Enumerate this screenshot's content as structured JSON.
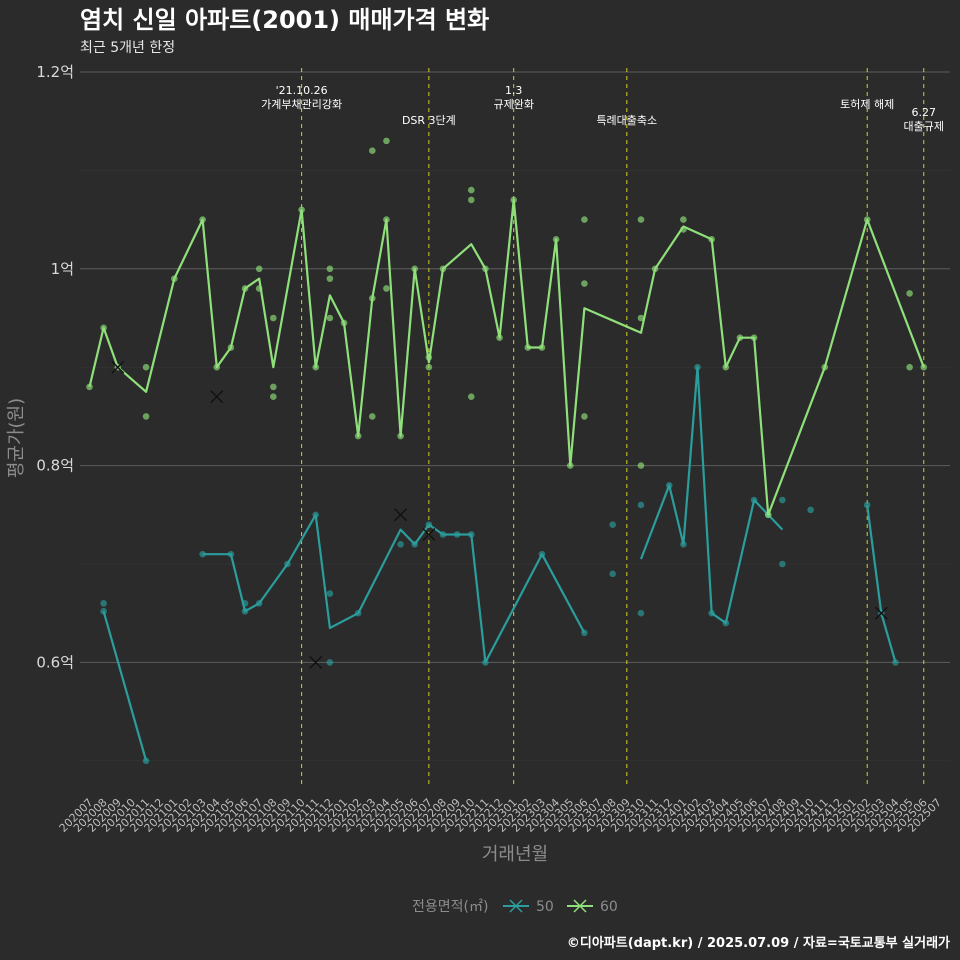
{
  "chart_data": {
    "type": "line",
    "title": "염치 신일 아파트(2001) 매매가격 변화",
    "subtitle": "최근 5개년 한정",
    "xlabel": "거래년월",
    "ylabel": "평균가(원)",
    "caption": "©디아파트(dapt.kr) / 2025.07.09 / 자료=국토교통부 실거래가",
    "ylim": [
      0.47,
      1.2
    ],
    "yticks": [
      {
        "value": 0.6,
        "label": "0.6억"
      },
      {
        "value": 0.8,
        "label": "0.8억"
      },
      {
        "value": 1.0,
        "label": "1억"
      },
      {
        "value": 1.2,
        "label": "1.2억"
      }
    ],
    "categories": [
      "202007",
      "202008",
      "202009",
      "202010",
      "202011",
      "202012",
      "202101",
      "202102",
      "202103",
      "202104",
      "202105",
      "202106",
      "202107",
      "202108",
      "202109",
      "202110",
      "202111",
      "202112",
      "202201",
      "202202",
      "202203",
      "202204",
      "202205",
      "202206",
      "202207",
      "202208",
      "202209",
      "202210",
      "202211",
      "202212",
      "202301",
      "202302",
      "202303",
      "202304",
      "202305",
      "202306",
      "202307",
      "202308",
      "202309",
      "202310",
      "202311",
      "202312",
      "202401",
      "202402",
      "202403",
      "202404",
      "202405",
      "202406",
      "202407",
      "202408",
      "202409",
      "202410",
      "202411",
      "202412",
      "202501",
      "202502",
      "202503",
      "202504",
      "202505",
      "202506",
      "202507"
    ],
    "legend": {
      "title": "전용면적(㎡)",
      "position": "bottom"
    },
    "grid": true,
    "events": [
      {
        "x": "202110",
        "lines": [
          "'21.10.26",
          "가계부채관리강화"
        ],
        "level": 0
      },
      {
        "x": "202207",
        "lines": [
          "DSR 3단계"
        ],
        "level": 2
      },
      {
        "x": "202301",
        "lines": [
          "1.3",
          "규제완화"
        ],
        "level": 0
      },
      {
        "x": "202309",
        "lines": [
          "특례대출축소"
        ],
        "level": 2
      },
      {
        "x": "202502",
        "lines": [
          "토허제 해제"
        ],
        "level": 1
      },
      {
        "x": "202506",
        "lines": [
          "6.27",
          "대출규제"
        ],
        "level": 3
      }
    ],
    "series": [
      {
        "name": "50",
        "color": "#2a9d9c",
        "line": [
          [
            "202008",
            0.652
          ],
          [
            "202011",
            0.5
          ],
          null,
          [
            "202103",
            0.71
          ],
          [
            "202105",
            0.71
          ],
          [
            "202106",
            0.652
          ],
          [
            "202107",
            0.66
          ],
          [
            "202109",
            0.7
          ],
          [
            "202111",
            0.75
          ],
          [
            "202112",
            0.635
          ],
          [
            "202202",
            0.65
          ],
          [
            "202205",
            0.735
          ],
          [
            "202206",
            0.72
          ],
          [
            "202207",
            0.74
          ],
          [
            "202208",
            0.73
          ],
          [
            "202209",
            0.73
          ],
          [
            "202210",
            0.73
          ],
          [
            "202211",
            0.6
          ],
          [
            "202303",
            0.71
          ],
          [
            "202306",
            0.63
          ],
          null,
          [
            "202310",
            0.705
          ],
          [
            "202312",
            0.78
          ],
          [
            "202401",
            0.72
          ],
          [
            "202402",
            0.9
          ],
          [
            "202403",
            0.65
          ],
          [
            "202404",
            0.64
          ],
          [
            "202406",
            0.765
          ],
          [
            "202407",
            0.75
          ],
          [
            "202408",
            0.735
          ],
          null,
          [
            "202502",
            0.76
          ],
          [
            "202503",
            0.65
          ],
          [
            "202504",
            0.6
          ]
        ],
        "points": [
          [
            "202008",
            0.66
          ],
          [
            "202008",
            0.652
          ],
          [
            "202011",
            0.5
          ],
          [
            "202103",
            0.71
          ],
          [
            "202105",
            0.71
          ],
          [
            "202106",
            0.66
          ],
          [
            "202106",
            0.652
          ],
          [
            "202107",
            0.66
          ],
          [
            "202109",
            0.7
          ],
          [
            "202111",
            0.75
          ],
          [
            "202112",
            0.67
          ],
          [
            "202112",
            0.6
          ],
          [
            "202202",
            0.65
          ],
          [
            "202205",
            0.72
          ],
          [
            "202206",
            0.72
          ],
          [
            "202207",
            0.74
          ],
          [
            "202208",
            0.73
          ],
          [
            "202209",
            0.73
          ],
          [
            "202210",
            0.73
          ],
          [
            "202211",
            0.6
          ],
          [
            "202303",
            0.71
          ],
          [
            "202306",
            0.63
          ],
          [
            "202308",
            0.74
          ],
          [
            "202308",
            0.69
          ],
          [
            "202310",
            0.76
          ],
          [
            "202310",
            0.65
          ],
          [
            "202312",
            0.78
          ],
          [
            "202401",
            0.72
          ],
          [
            "202402",
            0.9
          ],
          [
            "202403",
            0.65
          ],
          [
            "202404",
            0.64
          ],
          [
            "202406",
            0.765
          ],
          [
            "202407",
            0.75
          ],
          [
            "202408",
            0.765
          ],
          [
            "202408",
            0.7
          ],
          [
            "202410",
            0.755
          ],
          [
            "202502",
            0.76
          ],
          [
            "202503",
            0.65
          ],
          [
            "202504",
            0.6
          ]
        ],
        "cancelled": [
          [
            "202111",
            0.6
          ],
          [
            "202205",
            0.75
          ],
          [
            "202207",
            0.73
          ],
          [
            "202503",
            0.65
          ]
        ]
      },
      {
        "name": "60",
        "color": "#8fe07a",
        "line": [
          [
            "202007",
            0.88
          ],
          [
            "202008",
            0.94
          ],
          [
            "202009",
            0.9
          ],
          [
            "202011",
            0.875
          ],
          [
            "202101",
            0.99
          ],
          [
            "202103",
            1.05
          ],
          [
            "202104",
            0.9
          ],
          [
            "202105",
            0.92
          ],
          [
            "202106",
            0.98
          ],
          [
            "202107",
            0.99
          ],
          [
            "202108",
            0.9
          ],
          [
            "202110",
            1.06
          ],
          [
            "202111",
            0.9
          ],
          [
            "202112",
            0.973
          ],
          [
            "202201",
            0.945
          ],
          [
            "202202",
            0.83
          ],
          [
            "202203",
            0.97
          ],
          [
            "202204",
            1.05
          ],
          [
            "202205",
            0.83
          ],
          [
            "202206",
            1.0
          ],
          [
            "202207",
            0.905
          ],
          [
            "202208",
            1.0
          ],
          [
            "202210",
            1.025
          ],
          [
            "202211",
            1.0
          ],
          [
            "202212",
            0.93
          ],
          [
            "202301",
            1.07
          ],
          [
            "202302",
            0.92
          ],
          [
            "202303",
            0.92
          ],
          [
            "202304",
            1.03
          ],
          [
            "202305",
            0.8
          ],
          [
            "202306",
            0.96
          ],
          [
            "202310",
            0.935
          ],
          [
            "202311",
            1.0
          ],
          [
            "202401",
            1.043
          ],
          [
            "202403",
            1.03
          ],
          [
            "202404",
            0.9
          ],
          [
            "202405",
            0.93
          ],
          [
            "202406",
            0.93
          ],
          [
            "202407",
            0.75
          ],
          [
            "202411",
            0.9
          ],
          [
            "202502",
            1.05
          ],
          [
            "202506",
            0.9
          ]
        ],
        "points": [
          [
            "202007",
            0.88
          ],
          [
            "202008",
            0.94
          ],
          [
            "202009",
            0.9
          ],
          [
            "202011",
            0.9
          ],
          [
            "202011",
            0.85
          ],
          [
            "202101",
            0.99
          ],
          [
            "202103",
            1.05
          ],
          [
            "202104",
            0.9
          ],
          [
            "202105",
            0.92
          ],
          [
            "202106",
            0.98
          ],
          [
            "202107",
            1.0
          ],
          [
            "202107",
            0.98
          ],
          [
            "202108",
            0.95
          ],
          [
            "202108",
            0.88
          ],
          [
            "202108",
            0.87
          ],
          [
            "202110",
            1.06
          ],
          [
            "202111",
            0.9
          ],
          [
            "202112",
            1.0
          ],
          [
            "202112",
            0.99
          ],
          [
            "202112",
            0.95
          ],
          [
            "202201",
            0.945
          ],
          [
            "202202",
            0.83
          ],
          [
            "202203",
            1.12
          ],
          [
            "202203",
            0.97
          ],
          [
            "202203",
            0.85
          ],
          [
            "202204",
            1.13
          ],
          [
            "202204",
            1.05
          ],
          [
            "202204",
            0.98
          ],
          [
            "202205",
            0.83
          ],
          [
            "202206",
            1.0
          ],
          [
            "202207",
            0.91
          ],
          [
            "202207",
            0.9
          ],
          [
            "202208",
            1.0
          ],
          [
            "202210",
            1.08
          ],
          [
            "202210",
            1.07
          ],
          [
            "202210",
            0.87
          ],
          [
            "202211",
            1.0
          ],
          [
            "202212",
            0.93
          ],
          [
            "202301",
            1.07
          ],
          [
            "202302",
            0.92
          ],
          [
            "202303",
            0.92
          ],
          [
            "202304",
            1.03
          ],
          [
            "202305",
            0.8
          ],
          [
            "202306",
            1.05
          ],
          [
            "202306",
            0.985
          ],
          [
            "202306",
            0.85
          ],
          [
            "202310",
            1.05
          ],
          [
            "202310",
            0.95
          ],
          [
            "202310",
            0.8
          ],
          [
            "202311",
            1.0
          ],
          [
            "202401",
            1.05
          ],
          [
            "202401",
            1.04
          ],
          [
            "202403",
            1.03
          ],
          [
            "202404",
            0.9
          ],
          [
            "202405",
            0.93
          ],
          [
            "202406",
            0.93
          ],
          [
            "202407",
            0.75
          ],
          [
            "202411",
            0.9
          ],
          [
            "202502",
            1.05
          ],
          [
            "202505",
            0.975
          ],
          [
            "202505",
            0.9
          ],
          [
            "202506",
            0.9
          ]
        ],
        "cancelled": [
          [
            "202009",
            0.9
          ],
          [
            "202104",
            0.87
          ]
        ]
      }
    ]
  }
}
